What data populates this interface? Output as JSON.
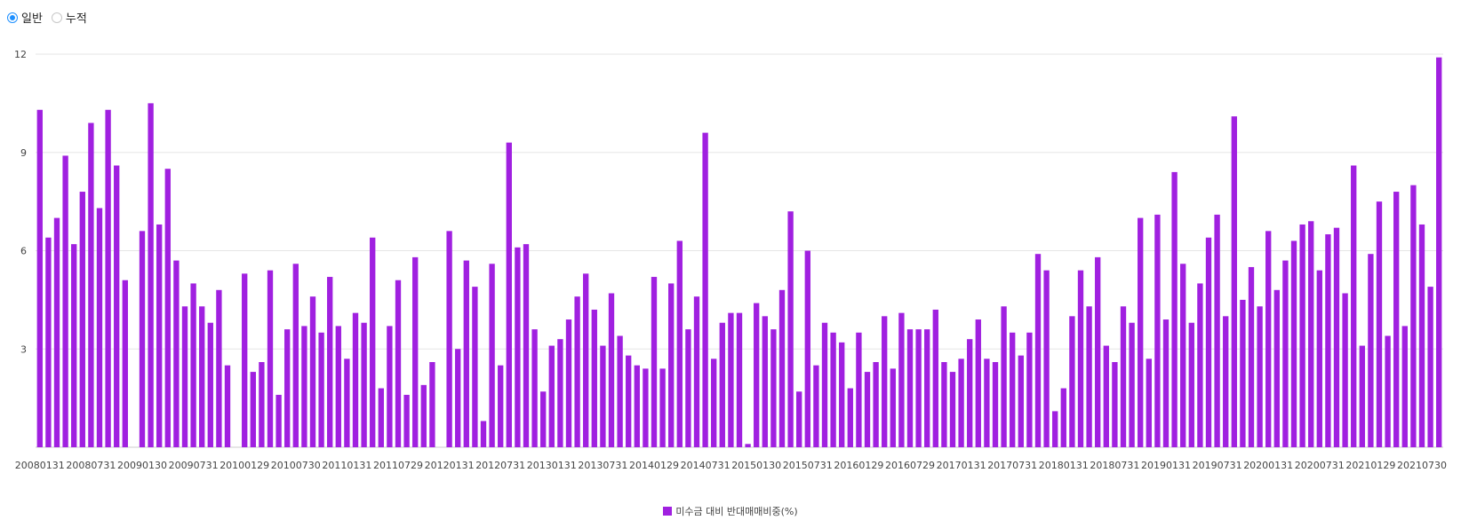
{
  "mode_toggle": {
    "options": [
      {
        "label": "일반",
        "checked": true
      },
      {
        "label": "누적",
        "checked": false
      }
    ]
  },
  "colors": {
    "bar": "#a020e0",
    "grid": "#e5e5e5",
    "radio_accent": "#1e90ff"
  },
  "chart_data": {
    "type": "bar",
    "title": "",
    "xlabel": "",
    "ylabel": "",
    "ylim": [
      0,
      12
    ],
    "yticks": [
      3,
      6,
      9,
      12
    ],
    "grid": true,
    "legend_placement": "bottom",
    "x_tick_labels": [
      "20080131",
      "20080731",
      "20090130",
      "20090731",
      "20100129",
      "20100730",
      "20110131",
      "20110729",
      "20120131",
      "20120731",
      "20130131",
      "20130731",
      "20140129",
      "20140731",
      "20150130",
      "20150731",
      "20160129",
      "20160729",
      "20170131",
      "20170731",
      "20180131",
      "20180731",
      "20190131",
      "20190731",
      "20200131",
      "20200731",
      "20210129",
      "20210730"
    ],
    "series": [
      {
        "name": "미수금 대비 반대매매비중(%)",
        "values": [
          10.3,
          6.4,
          7.0,
          8.9,
          6.2,
          7.8,
          9.9,
          7.3,
          10.3,
          8.6,
          5.1,
          0,
          6.6,
          10.5,
          6.8,
          8.5,
          5.7,
          4.3,
          5.0,
          4.3,
          3.8,
          4.8,
          2.5,
          0,
          5.3,
          2.3,
          2.6,
          5.4,
          1.6,
          3.6,
          5.6,
          3.7,
          4.6,
          3.5,
          5.2,
          3.7,
          2.7,
          4.1,
          3.8,
          6.4,
          1.8,
          3.7,
          5.1,
          1.6,
          5.8,
          1.9,
          2.6,
          0,
          6.6,
          3.0,
          5.7,
          4.9,
          0.8,
          5.6,
          2.5,
          9.3,
          6.1,
          6.2,
          3.6,
          1.7,
          3.1,
          3.3,
          3.9,
          4.6,
          5.3,
          4.2,
          3.1,
          4.7,
          3.4,
          2.8,
          2.5,
          2.4,
          5.2,
          2.4,
          5.0,
          6.3,
          3.6,
          4.6,
          9.6,
          2.7,
          3.8,
          4.1,
          4.1,
          0.1,
          4.4,
          4.0,
          3.6,
          4.8,
          7.2,
          1.7,
          6.0,
          2.5,
          3.8,
          3.5,
          3.2,
          1.8,
          3.5,
          2.3,
          2.6,
          4.0,
          2.4,
          4.1,
          3.6,
          3.6,
          3.6,
          4.2,
          2.6,
          2.3,
          2.7,
          3.3,
          3.9,
          2.7,
          2.6,
          4.3,
          3.5,
          2.8,
          3.5,
          5.9,
          5.4,
          1.1,
          1.8,
          4.0,
          5.4,
          4.3,
          5.8,
          3.1,
          2.6,
          4.3,
          3.8,
          7.0,
          2.7,
          7.1,
          3.9,
          8.4,
          5.6,
          3.8,
          5.0,
          6.4,
          7.1,
          4.0,
          10.1,
          4.5,
          5.5,
          4.3,
          6.6,
          4.8,
          5.7,
          6.3,
          6.8,
          6.9,
          5.4,
          6.5,
          6.7,
          4.7,
          8.6,
          3.1,
          5.9,
          7.5,
          3.4,
          7.8,
          3.7,
          8.0,
          6.8,
          4.9,
          11.9
        ]
      }
    ]
  }
}
